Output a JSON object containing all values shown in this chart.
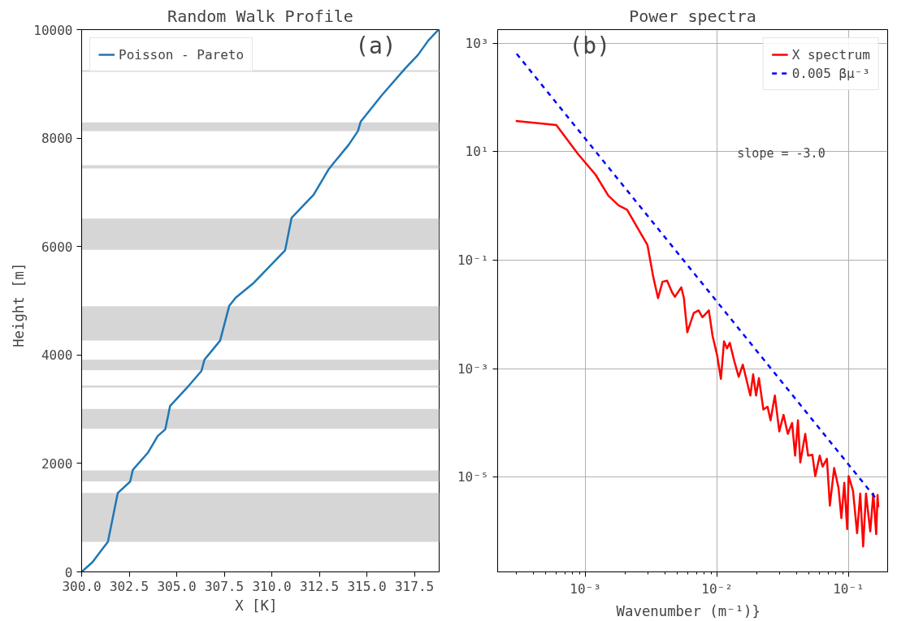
{
  "chart_data": [
    {
      "type": "line",
      "title": "Random Walk Profile",
      "xlabel": "X  [K]",
      "ylabel": "Height  [m]",
      "annotations": [
        "(a)"
      ],
      "series": [
        {
          "name": "Poisson - Pareto",
          "color": "#1f77b4",
          "x": [
            300,
            300.57,
            301.05,
            301.38,
            301.9,
            302.55,
            302.69,
            303.5,
            304.0,
            304.4,
            304.65,
            305.5,
            306.3,
            306.46,
            307.28,
            307.76,
            308.1,
            309.05,
            310.7,
            311.04,
            312.2,
            313.0,
            313.23,
            314.05,
            314.53,
            314.67,
            315.76,
            317.0,
            317.68,
            318.23,
            318.77
          ],
          "values": [
            0,
            180,
            405,
            555,
            1455,
            1665,
            1880,
            2205,
            2505,
            2630,
            3060,
            3380,
            3705,
            3915,
            4265,
            4905,
            5055,
            5330,
            5930,
            6530,
            6955,
            7430,
            7530,
            7880,
            8130,
            8300,
            8780,
            9280,
            9530,
            9800,
            10000
          ]
        }
      ],
      "bands": [
        {
          "axis": "y",
          "from": 555,
          "to": 1455,
          "color": "#d6d6d6"
        },
        {
          "axis": "y",
          "from": 1670,
          "to": 1870,
          "color": "#d6d6d6"
        },
        {
          "axis": "y",
          "from": 2640,
          "to": 3005,
          "color": "#d6d6d6"
        },
        {
          "axis": "y",
          "from": 3400,
          "to": 3440,
          "color": "#d6d6d6"
        },
        {
          "axis": "y",
          "from": 3720,
          "to": 3915,
          "color": "#d6d6d6"
        },
        {
          "axis": "y",
          "from": 4265,
          "to": 4900,
          "color": "#d6d6d6"
        },
        {
          "axis": "y",
          "from": 5940,
          "to": 6515,
          "color": "#d6d6d6"
        },
        {
          "axis": "y",
          "from": 7440,
          "to": 7500,
          "color": "#d6d6d6"
        },
        {
          "axis": "y",
          "from": 8130,
          "to": 8290,
          "color": "#d6d6d6"
        },
        {
          "axis": "y",
          "from": 9220,
          "to": 9250,
          "color": "#d6d6d6"
        }
      ],
      "xlim": [
        300,
        318.8
      ],
      "ylim": [
        0,
        10000
      ],
      "xticks": [
        {
          "value": 300,
          "label": "300.0"
        },
        {
          "value": 302.5,
          "label": "302.5"
        },
        {
          "value": 305,
          "label": "305.0"
        },
        {
          "value": 307.5,
          "label": "307.5"
        },
        {
          "value": 310,
          "label": "310.0"
        },
        {
          "value": 312.5,
          "label": "312.5"
        },
        {
          "value": 315,
          "label": "315.0"
        },
        {
          "value": 317.5,
          "label": "317.5"
        }
      ],
      "yticks": [
        0,
        2000,
        4000,
        6000,
        8000,
        10000
      ],
      "legend": "top left",
      "grid": false
    },
    {
      "type": "line",
      "title": "Power spectra",
      "xlabel": "Wavenumber  (m⁻¹)}",
      "annotations": [
        "(b)",
        "slope = -3.0"
      ],
      "log": "xy",
      "grid": true,
      "legend": "top right",
      "series": [
        {
          "name": "X spectrum",
          "color": "#ff0000",
          "line_style": "solid",
          "x": [
            0.000295,
            0.0006,
            0.00088,
            0.00119,
            0.00149,
            0.00178,
            0.00207,
            0.00296,
            0.00327,
            0.00356,
            0.00385,
            0.00417,
            0.00455,
            0.00478,
            0.00535,
            0.0056,
            0.00594,
            0.00665,
            0.00724,
            0.00774,
            0.00866,
            0.00925,
            0.01,
            0.0107,
            0.0113,
            0.0119,
            0.0125,
            0.0135,
            0.0146,
            0.0157,
            0.0179,
            0.0188,
            0.0198,
            0.0208,
            0.0225,
            0.0242,
            0.0255,
            0.0275,
            0.0297,
            0.032,
            0.0345,
            0.0372,
            0.0392,
            0.0412,
            0.0429,
            0.0468,
            0.0492,
            0.053,
            0.0558,
            0.0603,
            0.0634,
            0.0684,
            0.072,
            0.0776,
            0.0838,
            0.0881,
            0.0927,
            0.0975,
            0.1,
            0.108,
            0.116,
            0.1225,
            0.129,
            0.1355,
            0.146,
            0.154,
            0.162,
            0.166,
            0.168
          ],
          "values": [
            37,
            31,
            9.0,
            3.8,
            1.56,
            1.03,
            0.85,
            0.19,
            0.05,
            0.02,
            0.04,
            0.042,
            0.0257,
            0.0212,
            0.0316,
            0.02,
            0.0047,
            0.0106,
            0.0119,
            0.0089,
            0.0119,
            0.004,
            0.0018,
            0.00065,
            0.0032,
            0.00237,
            0.003,
            0.0014,
            0.00071,
            0.00119,
            0.00032,
            0.00079,
            0.00032,
            0.00067,
            0.000177,
            0.0002,
            0.000112,
            0.00032,
            7e-05,
            0.000141,
            6.3e-05,
            0.0001,
            2.5e-05,
            0.000112,
            1.87e-05,
            6.3e-05,
            2.5e-05,
            2.6e-05,
            1.05e-05,
            2.5e-05,
            1.57e-05,
            2.2e-05,
            3e-06,
            1.48e-05,
            6.3e-06,
            1.76e-06,
            7.9e-06,
            1.11e-06,
            1.05e-05,
            5.6e-06,
            9.3e-07,
            5e-06,
            5.3e-07,
            5e-06,
            1e-06,
            5e-06,
            8.9e-07,
            4.7e-06,
            2.8e-06
          ]
        },
        {
          "name": "0.005 βμ⁻³",
          "color": "#0000ff",
          "line_style": "dashed",
          "x": [
            0.0003,
            0.165
          ],
          "values": [
            638,
            3.8e-06
          ]
        }
      ],
      "xlim": [
        0.000215,
        0.198
      ],
      "ylim": [
        1.8e-07,
        1780
      ],
      "xticks": [
        {
          "value": 0.001,
          "label": "10⁻³"
        },
        {
          "value": 0.01,
          "label": "10⁻²"
        },
        {
          "value": 0.1,
          "label": "10⁻¹"
        }
      ],
      "yticks": [
        {
          "value": 1e-05,
          "label": "10⁻⁵"
        },
        {
          "value": 0.001,
          "label": "10⁻³"
        },
        {
          "value": 0.1,
          "label": "10⁻¹"
        },
        {
          "value": 10,
          "label": "10¹"
        },
        {
          "value": 1000,
          "label": "10³"
        }
      ]
    }
  ]
}
